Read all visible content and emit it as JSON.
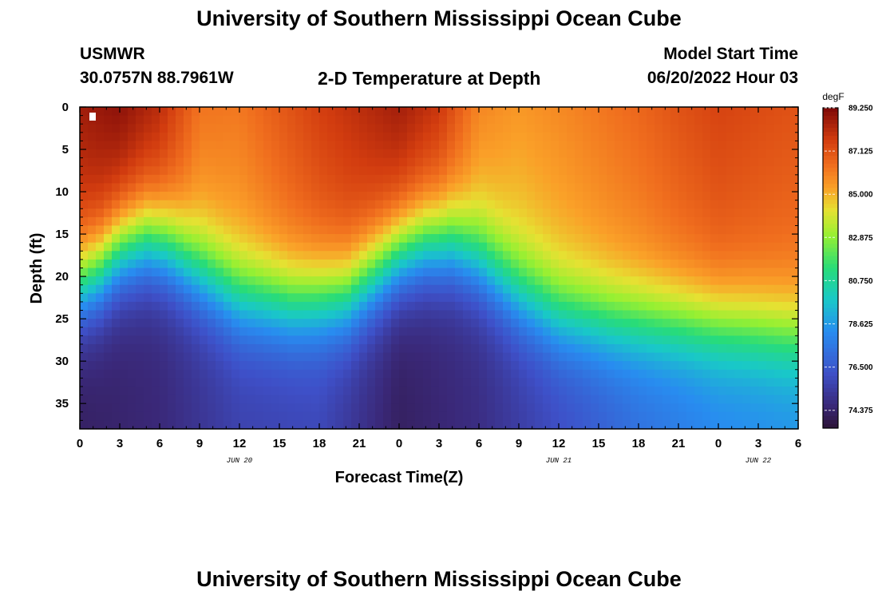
{
  "page": {
    "title_top": "University of Southern Mississippi Ocean Cube",
    "title_bottom": "University of Southern Mississippi Ocean Cube",
    "station_name": "USMWR",
    "station_coords": "30.0757N  88.7961W",
    "model_label": "Model Start Time",
    "model_start": "06/20/2022 Hour 03"
  },
  "chart_data": {
    "type": "heatmap",
    "title": "2-D Temperature at Depth",
    "xlabel": "Forecast Time(Z)",
    "ylabel": "Depth (ft)",
    "x_range_hours": [
      0,
      54
    ],
    "y_range_ft": [
      0,
      38
    ],
    "x_ticks": [
      {
        "h": 0,
        "label": "0"
      },
      {
        "h": 3,
        "label": "3"
      },
      {
        "h": 6,
        "label": "6"
      },
      {
        "h": 9,
        "label": "9"
      },
      {
        "h": 12,
        "label": "12"
      },
      {
        "h": 15,
        "label": "15"
      },
      {
        "h": 18,
        "label": "18"
      },
      {
        "h": 21,
        "label": "21"
      },
      {
        "h": 24,
        "label": "0"
      },
      {
        "h": 27,
        "label": "3"
      },
      {
        "h": 30,
        "label": "6"
      },
      {
        "h": 33,
        "label": "9"
      },
      {
        "h": 36,
        "label": "12"
      },
      {
        "h": 39,
        "label": "15"
      },
      {
        "h": 42,
        "label": "18"
      },
      {
        "h": 45,
        "label": "21"
      },
      {
        "h": 48,
        "label": "0"
      },
      {
        "h": 51,
        "label": "3"
      },
      {
        "h": 54,
        "label": "6"
      }
    ],
    "y_ticks": [
      0,
      5,
      10,
      15,
      20,
      25,
      30,
      35
    ],
    "day_labels": [
      {
        "h": 12,
        "label": "JUN 20"
      },
      {
        "h": 36,
        "label": "JUN 21"
      },
      {
        "h": 51,
        "label": "JUN 22"
      }
    ],
    "colorbar": {
      "unit": "degF",
      "min": 73.5,
      "max": 89.25,
      "ticks": [
        "89.250",
        "87.125",
        "85.000",
        "82.875",
        "80.750",
        "78.625",
        "76.500",
        "74.375"
      ]
    },
    "thermocline_depth_ft": [
      {
        "h": 0,
        "d": 21
      },
      {
        "h": 1.5,
        "d": 19.5
      },
      {
        "h": 3,
        "d": 17
      },
      {
        "h": 5,
        "d": 15.8
      },
      {
        "h": 6.5,
        "d": 16.5
      },
      {
        "h": 9,
        "d": 19.5
      },
      {
        "h": 12,
        "d": 22.5
      },
      {
        "h": 16,
        "d": 23.3
      },
      {
        "h": 20,
        "d": 22.5
      },
      {
        "h": 22,
        "d": 20
      },
      {
        "h": 24,
        "d": 17.5
      },
      {
        "h": 26,
        "d": 16.2
      },
      {
        "h": 28,
        "d": 16.2
      },
      {
        "h": 30,
        "d": 18
      },
      {
        "h": 33,
        "d": 22
      },
      {
        "h": 36,
        "d": 24.5
      },
      {
        "h": 40,
        "d": 25.3
      },
      {
        "h": 45,
        "d": 25.6
      },
      {
        "h": 50,
        "d": 26.2
      },
      {
        "h": 54,
        "d": 27
      }
    ],
    "surface_temp_degF": [
      {
        "h": 0,
        "t": 88.6
      },
      {
        "h": 3,
        "t": 89.0
      },
      {
        "h": 6,
        "t": 88.2
      },
      {
        "h": 9,
        "t": 86.3
      },
      {
        "h": 12,
        "t": 86.2
      },
      {
        "h": 15,
        "t": 86.9
      },
      {
        "h": 18,
        "t": 87.6
      },
      {
        "h": 21,
        "t": 88.1
      },
      {
        "h": 24,
        "t": 88.6
      },
      {
        "h": 27,
        "t": 87.9
      },
      {
        "h": 30,
        "t": 85.9
      },
      {
        "h": 33,
        "t": 85.5
      },
      {
        "h": 36,
        "t": 85.8
      },
      {
        "h": 39,
        "t": 86.2
      },
      {
        "h": 42,
        "t": 86.6
      },
      {
        "h": 45,
        "t": 87.1
      },
      {
        "h": 48,
        "t": 87.5
      },
      {
        "h": 51,
        "t": 87.3
      },
      {
        "h": 54,
        "t": 87.1
      }
    ],
    "bottom_temp_degF": [
      {
        "h": 0,
        "t": 74.2
      },
      {
        "h": 6,
        "t": 74.6
      },
      {
        "h": 12,
        "t": 75.6
      },
      {
        "h": 18,
        "t": 75.8
      },
      {
        "h": 24,
        "t": 74.2
      },
      {
        "h": 30,
        "t": 74.8
      },
      {
        "h": 36,
        "t": 76.0
      },
      {
        "h": 42,
        "t": 77.2
      },
      {
        "h": 48,
        "t": 78.0
      },
      {
        "h": 54,
        "t": 78.3
      }
    ]
  }
}
